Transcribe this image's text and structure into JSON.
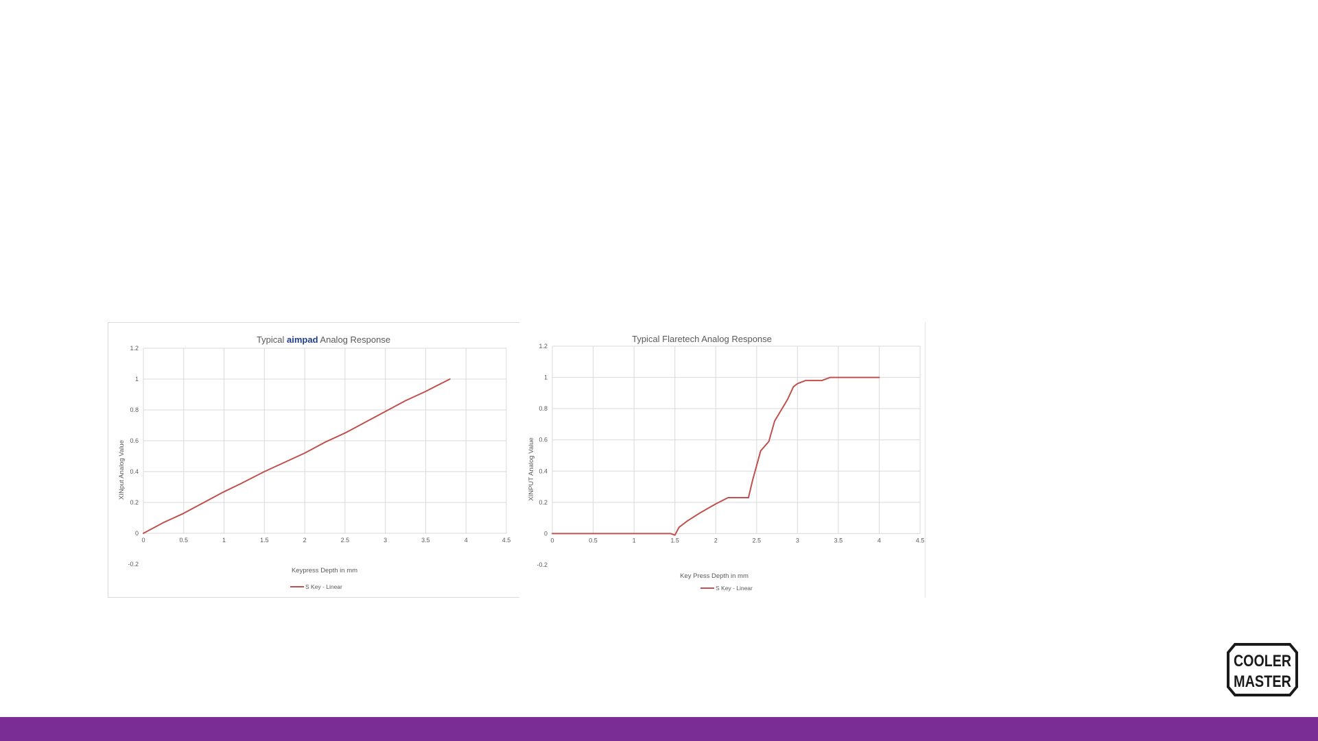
{
  "colors": {
    "series": "#c0504d",
    "grid": "#d9d9d9",
    "axis_text": "#595959",
    "title_text": "#595959",
    "footer_bar": "#7b2d96",
    "logo_fill": "#1a1a1a",
    "brand_blue": "#1f3b8f",
    "brand_red": "#c0392b"
  },
  "chart_data": [
    {
      "type": "line",
      "title_parts": {
        "prefix": "Typical",
        "brand": "aimpad",
        "suffix": "Analog Response"
      },
      "xlabel": "Keypress Depth  in mm",
      "ylabel": "XINput Analog Value",
      "xlim": [
        0,
        4.5
      ],
      "ylim": [
        -0.2,
        1.2
      ],
      "xticks": [
        "0",
        "0.5",
        "1",
        "1.5",
        "2",
        "2.5",
        "3",
        "3.5",
        "4",
        "4.5"
      ],
      "yticks": [
        "-0.2",
        "0",
        "0.2",
        "0.4",
        "0.6",
        "0.8",
        "1",
        "1.2"
      ],
      "grid": true,
      "legend_position": "bottom",
      "series": [
        {
          "name": "S Key -  Linear",
          "x": [
            0,
            0.25,
            0.5,
            0.75,
            1.0,
            1.2,
            1.5,
            1.75,
            2.0,
            2.25,
            2.5,
            2.75,
            3.0,
            3.25,
            3.5,
            3.8
          ],
          "y": [
            0,
            0.07,
            0.13,
            0.2,
            0.27,
            0.32,
            0.4,
            0.46,
            0.52,
            0.59,
            0.65,
            0.72,
            0.79,
            0.86,
            0.92,
            1.0
          ]
        }
      ]
    },
    {
      "type": "line",
      "title": "Typical Flaretech Analog Response",
      "xlabel": "Key Press Depth  in mm",
      "ylabel": "XINPUT Analog Value",
      "xlim": [
        0,
        4.5
      ],
      "ylim": [
        -0.2,
        1.2
      ],
      "xticks": [
        "0",
        "0.5",
        "1",
        "1.5",
        "2",
        "2.5",
        "3",
        "3.5",
        "4",
        "4.5"
      ],
      "yticks": [
        "-0.2",
        "0",
        "0.2",
        "0.4",
        "0.6",
        "0.8",
        "1",
        "1.2"
      ],
      "grid": true,
      "legend_position": "bottom",
      "series": [
        {
          "name": "S Key - Linear",
          "x": [
            0,
            0.5,
            1.0,
            1.45,
            1.5,
            1.55,
            1.65,
            1.8,
            2.0,
            2.15,
            2.3,
            2.4,
            2.45,
            2.55,
            2.65,
            2.72,
            2.8,
            2.88,
            2.95,
            3.0,
            3.1,
            3.2,
            3.3,
            3.4,
            3.5,
            4.0
          ],
          "y": [
            0,
            0,
            0,
            0,
            -0.01,
            0.04,
            0.08,
            0.13,
            0.19,
            0.23,
            0.23,
            0.23,
            0.34,
            0.53,
            0.59,
            0.72,
            0.79,
            0.86,
            0.94,
            0.96,
            0.98,
            0.98,
            0.98,
            1.0,
            1.0,
            1.0
          ]
        }
      ]
    }
  ],
  "branding": {
    "logo_line1": "COOLER",
    "logo_line2": "MASTER"
  }
}
